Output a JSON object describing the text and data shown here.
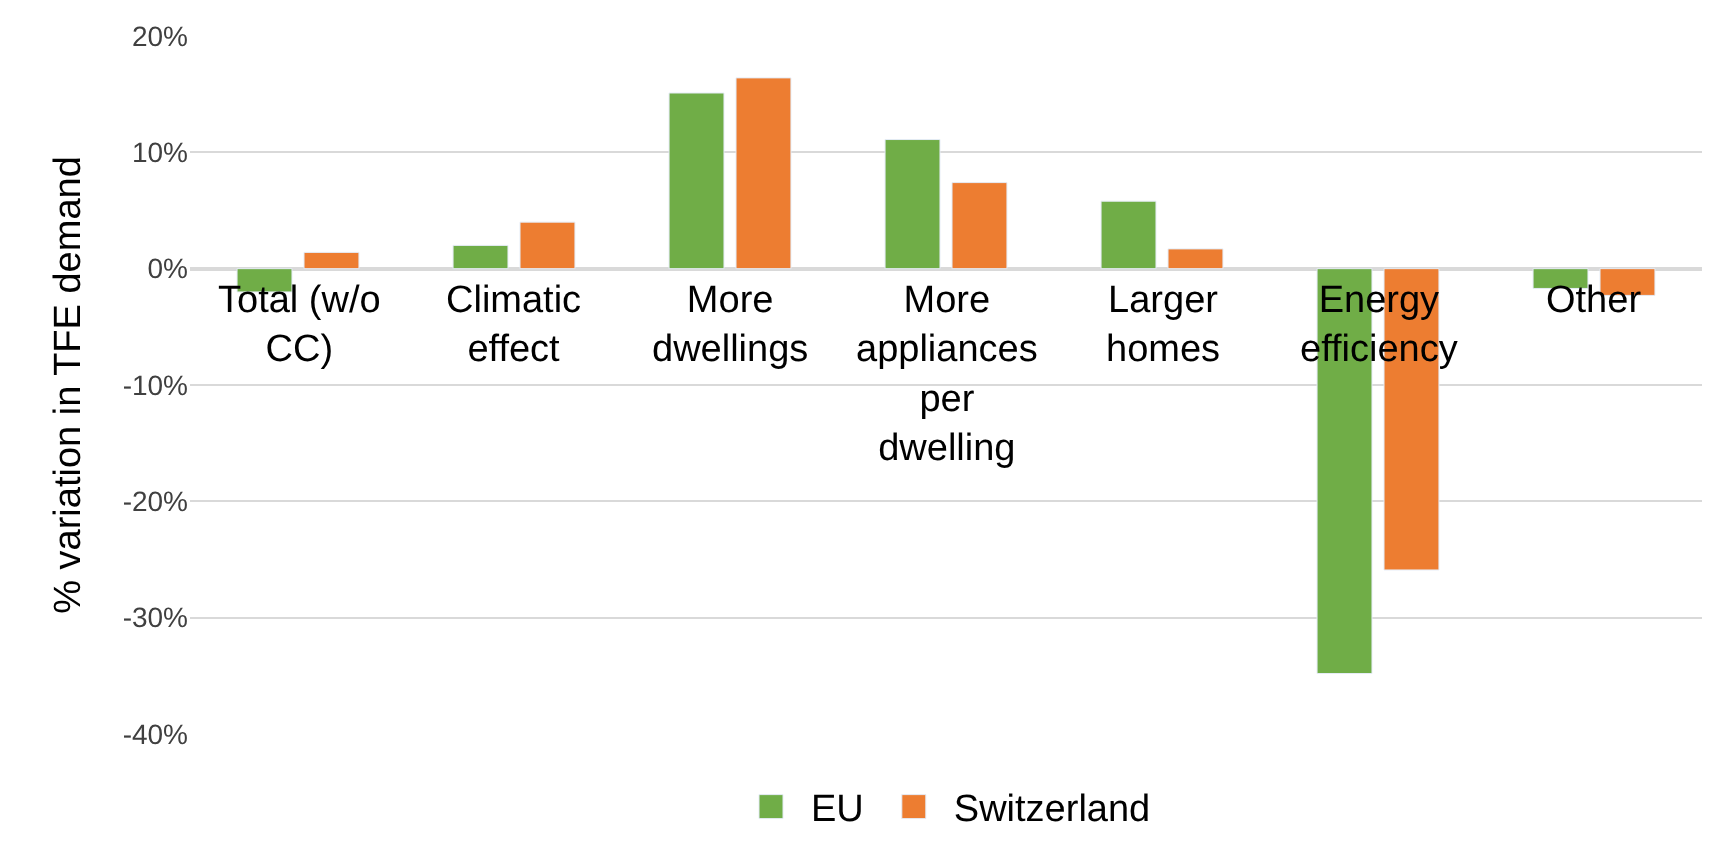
{
  "chart_data": {
    "type": "bar",
    "ylabel": "% variation in TFE demand",
    "categories": [
      "Total (w/o CC)",
      "Climatic effect",
      "More dwellings",
      "More appliances per dwelling",
      "Larger homes",
      "Energy efficiency",
      "Other"
    ],
    "series": [
      {
        "name": "EU",
        "color": "#70ad47",
        "values": [
          -2.0,
          2.0,
          15.1,
          11.1,
          5.8,
          -34.8,
          -1.7
        ]
      },
      {
        "name": "Switzerland",
        "color": "#ed7d31",
        "values": [
          1.4,
          4.0,
          16.4,
          7.4,
          1.7,
          -25.9,
          -2.3
        ]
      }
    ],
    "ylim": [
      -40,
      20
    ],
    "yticks": [
      {
        "value": -40,
        "label": "-40%"
      },
      {
        "value": -30,
        "label": "-30%"
      },
      {
        "value": -20,
        "label": "-20%"
      },
      {
        "value": -10,
        "label": "-10%"
      },
      {
        "value": 0,
        "label": "0%"
      },
      {
        "value": 10,
        "label": "10%"
      },
      {
        "value": 20,
        "label": "20%"
      }
    ],
    "grid": "y",
    "legend": "bottom"
  }
}
